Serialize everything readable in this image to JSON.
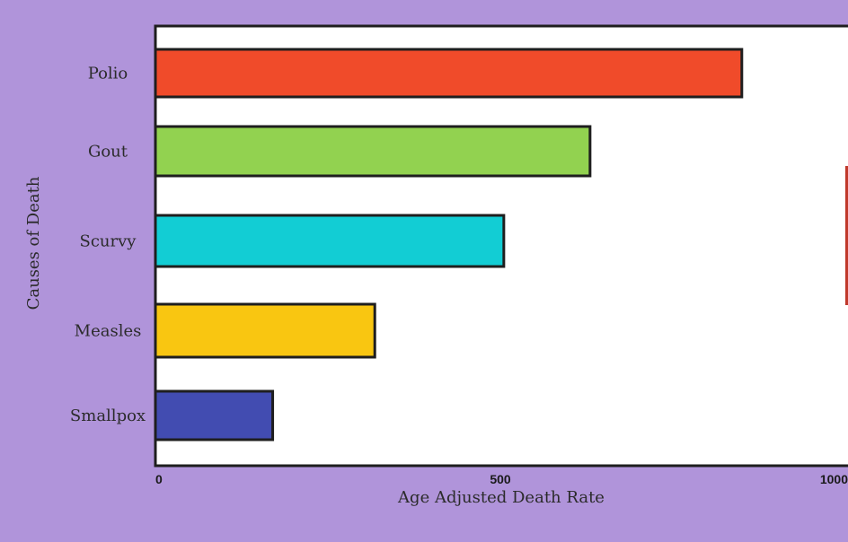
{
  "chart_data": {
    "type": "bar",
    "orientation": "horizontal",
    "title": "",
    "xlabel": "Age Adjusted Death Rate",
    "ylabel": "Causes of Death",
    "xlim": [
      0,
      1000
    ],
    "xticks": [
      0,
      500,
      1000
    ],
    "xtick_labels": [
      "0",
      "500",
      "1000"
    ],
    "grid": false,
    "categories": [
      "Polio",
      "Gout",
      "Scurvy",
      "Measles",
      "Smallpox"
    ],
    "values": [
      850,
      630,
      505,
      318,
      170
    ],
    "colors": [
      "#F04B2A",
      "#92D250",
      "#12CDD4",
      "#F9C611",
      "#424CB1"
    ]
  },
  "colors": {
    "background": "#B094DA",
    "plot_background": "#FFFFFF",
    "bar_stroke": "#1E1E1E",
    "clipped_series_edge": "#C0392B"
  }
}
